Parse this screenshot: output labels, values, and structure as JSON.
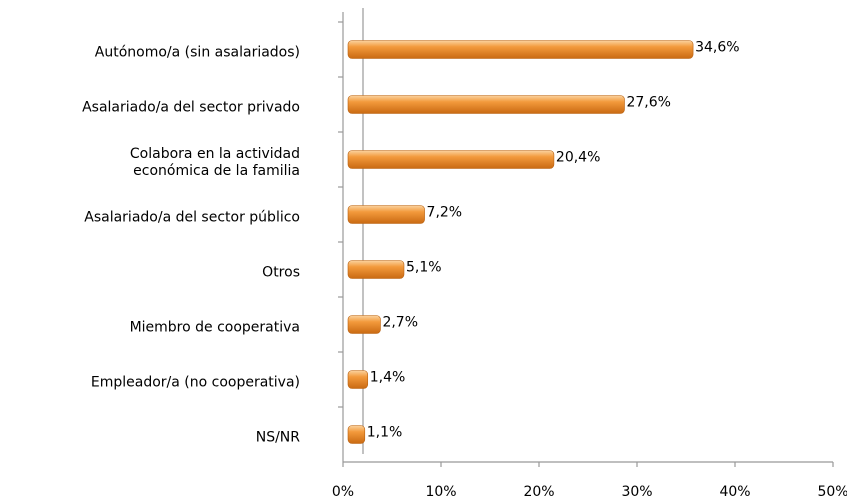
{
  "chart_data": {
    "type": "bar",
    "orientation": "horizontal",
    "categories": [
      "Autónomo/a (sin asalariados)",
      "Asalariado/a del sector privado",
      "Colabora en la actividad\neconómica de la familia",
      "Asalariado/a del sector público",
      "Otros",
      "Miembro de cooperativa",
      "Empleador/a (no cooperativa)",
      "NS/NR"
    ],
    "values": [
      34.6,
      27.6,
      20.4,
      7.2,
      5.1,
      2.7,
      1.4,
      1.1
    ],
    "value_labels": [
      "34,6%",
      "27,6%",
      "20,4%",
      "7,2%",
      "5,1%",
      "2,7%",
      "1,4%",
      "1,1%"
    ],
    "color": "#f0932b",
    "xlim": [
      0,
      50
    ],
    "xticks": [
      {
        "value": 0,
        "label": "0%"
      },
      {
        "value": 10,
        "label": "10%"
      },
      {
        "value": 20,
        "label": "20%"
      },
      {
        "value": 30,
        "label": "30%"
      },
      {
        "value": 40,
        "label": "40%"
      },
      {
        "value": 50,
        "label": "50%"
      }
    ],
    "grid": false
  }
}
